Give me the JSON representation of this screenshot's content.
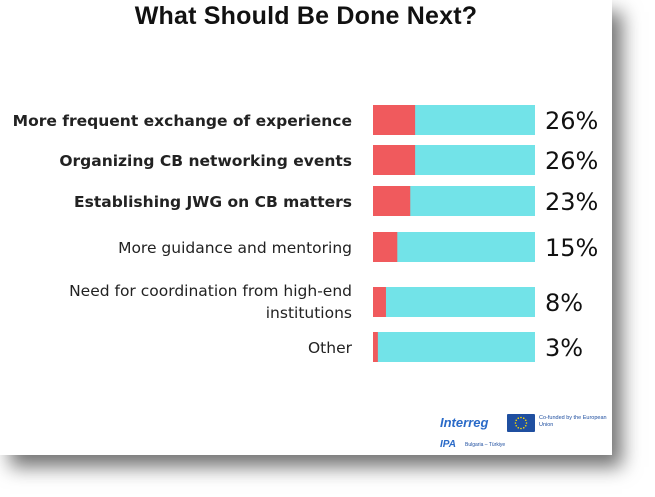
{
  "chart_data": {
    "type": "bar",
    "orientation": "horizontal",
    "stacked": true,
    "title": "What Should Be Done Next?",
    "categories": [
      "More frequent exchange of experience",
      "Organizing CB networking events",
      "Establishing JWG on CB matters",
      "More guidance and mentoring",
      "Need for coordination from high-end institutions",
      "Other"
    ],
    "bold_categories": [
      true,
      true,
      true,
      false,
      false,
      false
    ],
    "values": [
      26,
      26,
      23,
      15,
      8,
      3
    ],
    "value_labels": [
      "26%",
      "26%",
      "23%",
      "15%",
      "8%",
      "3%"
    ],
    "xlim": [
      0,
      100
    ],
    "colors": {
      "value": "#f05a5d",
      "remainder": "#72e3e8"
    },
    "grid": false,
    "legend": "none"
  },
  "footer": {
    "interreg": "Interreg",
    "cofunded": "Co-funded by the European Union",
    "ipa": "IPA",
    "ipa_sub": "Bulgaria – Türkiye"
  }
}
